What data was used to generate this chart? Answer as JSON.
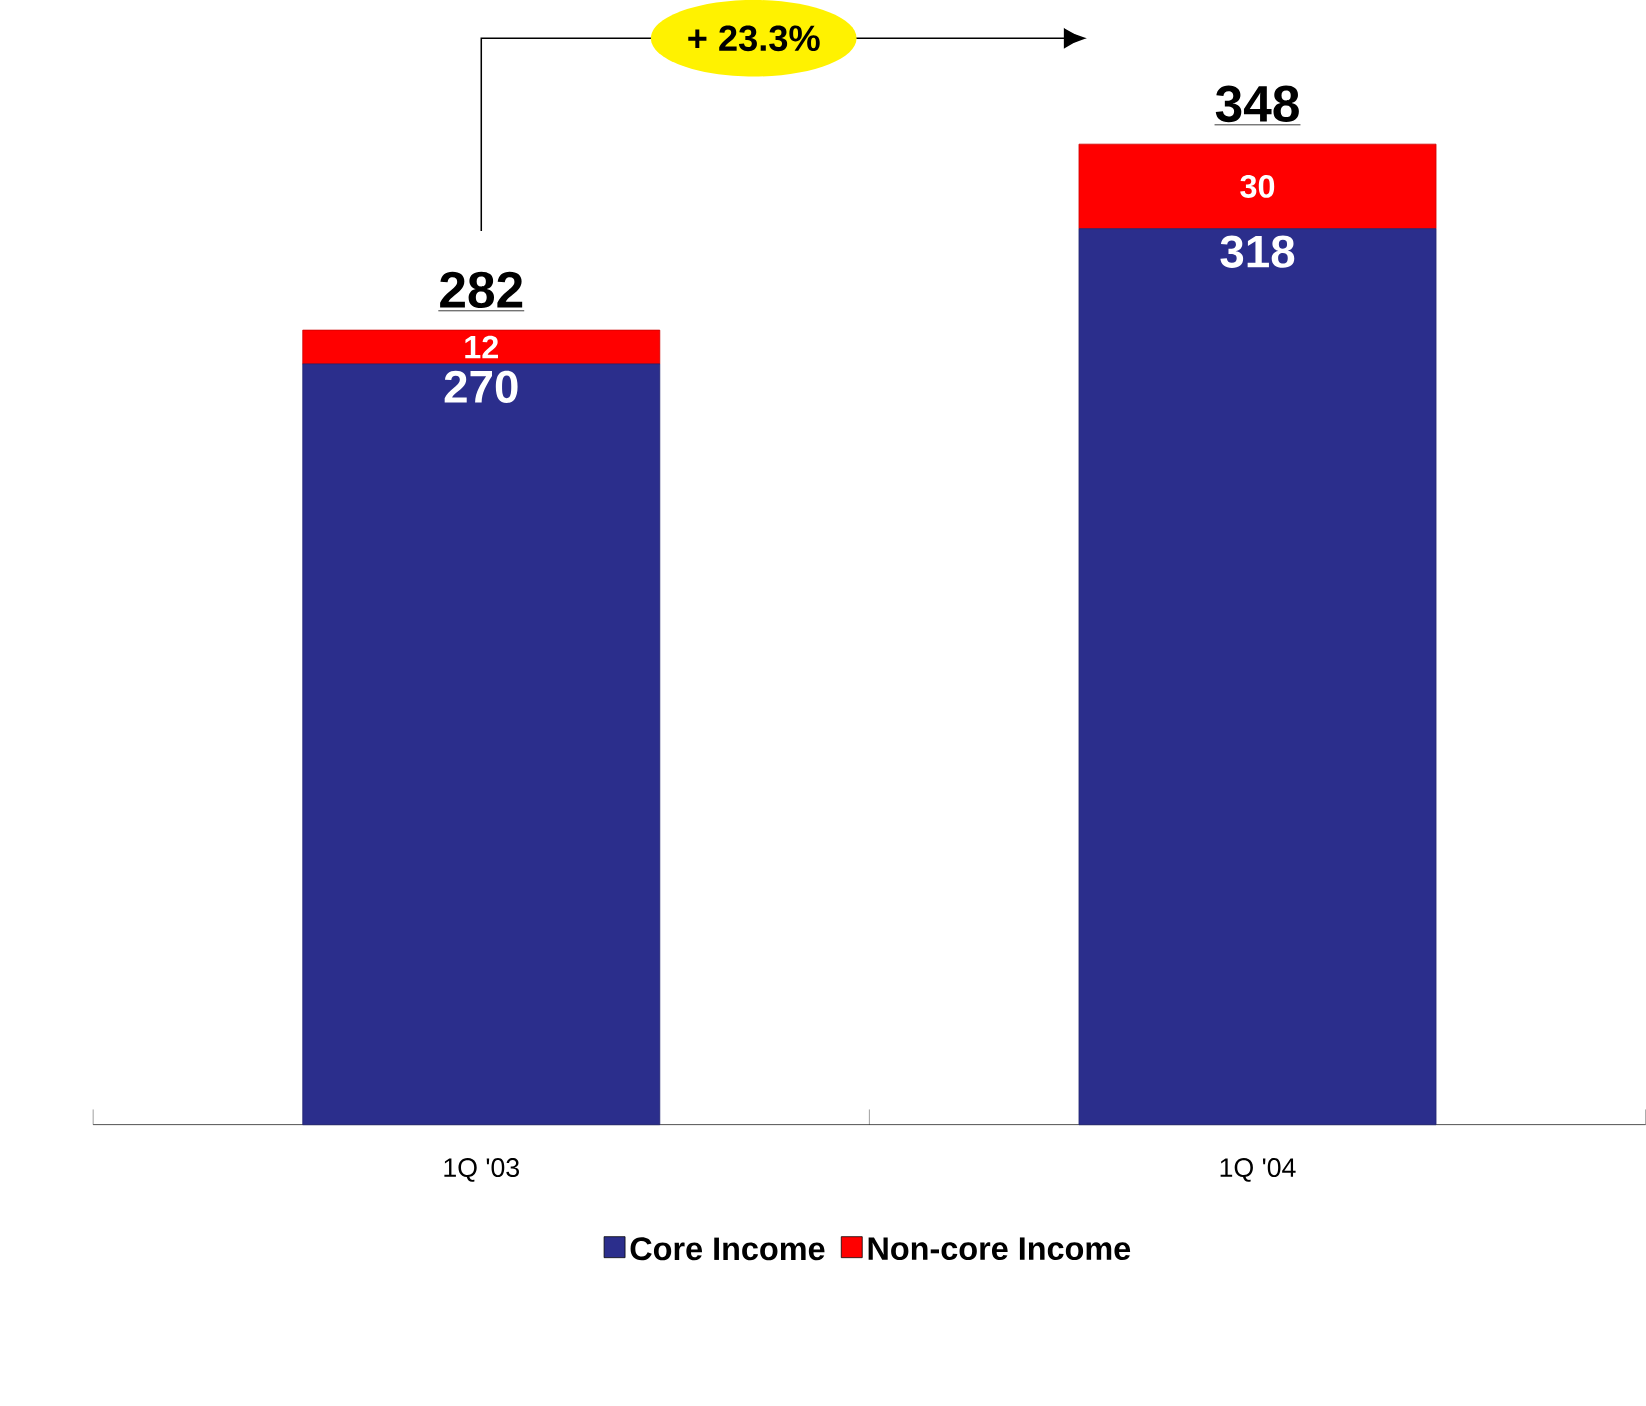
{
  "chart_data": {
    "type": "bar",
    "stacked": true,
    "categories": [
      "1Q '03",
      "1Q '04"
    ],
    "series": [
      {
        "name": "Core Income",
        "color": "#2b2e8c",
        "values": [
          270,
          318
        ],
        "value_labels": [
          "270",
          "318"
        ]
      },
      {
        "name": "Non-core Income",
        "color": "#ff0000",
        "values": [
          12,
          30
        ],
        "value_labels": [
          "12",
          "30"
        ]
      }
    ],
    "totals": [
      "282",
      "348"
    ],
    "annotations": [
      "+ 23.3%"
    ],
    "tick_labels": "x",
    "legend": "bottom",
    "grid": false
  }
}
